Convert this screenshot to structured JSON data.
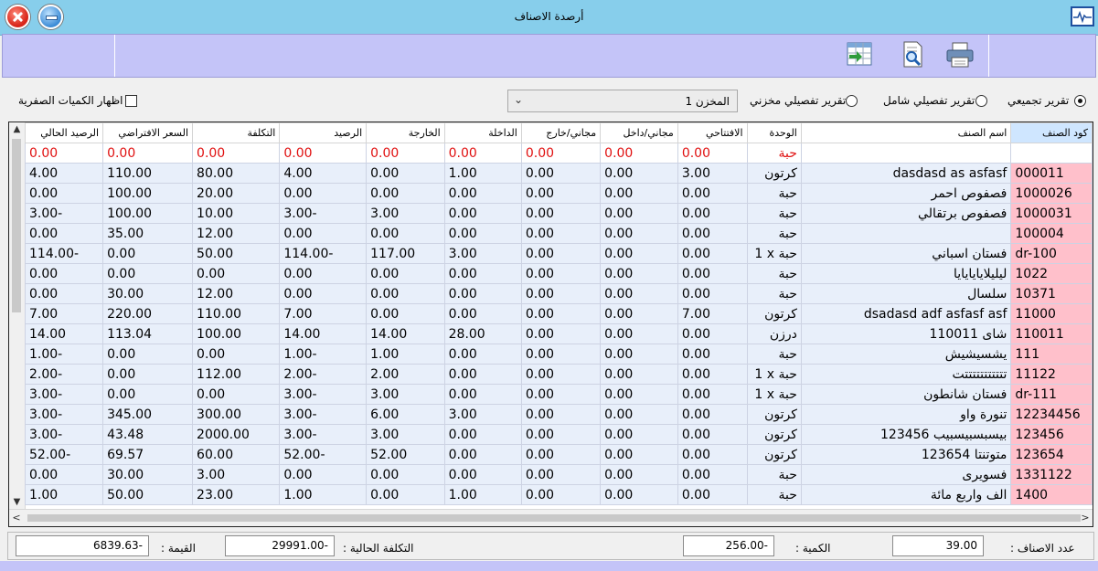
{
  "window": {
    "title": "أرصدة الاصناف"
  },
  "options": {
    "report_summary": "تقرير تجميعي",
    "report_detailed_full": "تقرير تفصيلي شامل",
    "report_detailed_store": "تقرير تفصيلي مخزني",
    "selected_report": "report_summary",
    "store_select": "المخزن 1",
    "show_zero": "اظهار الكميات الصفرية"
  },
  "grid": {
    "columns": [
      "كود الصنف",
      "اسم الصنف",
      "الوحدة",
      "الافتتاحي",
      "مجاني/داخل",
      "مجاني/خارج",
      "الداخلة",
      "الخارجة",
      "الرصيد",
      "التكلفة",
      "السعر الافتراضي",
      "الرصيد الحالي"
    ],
    "rows": [
      [
        "",
        "",
        "حبة",
        "0.00",
        "0.00",
        "0.00",
        "0.00",
        "0.00",
        "0.00",
        "0.00",
        "0.00",
        "0.00"
      ],
      [
        "000011",
        "dasdasd as asfasf",
        "كرتون",
        "3.00",
        "0.00",
        "0.00",
        "1.00",
        "0.00",
        "4.00",
        "80.00",
        "110.00",
        "4.00"
      ],
      [
        "1000026",
        "فصفوص احمر",
        "حبة",
        "0.00",
        "0.00",
        "0.00",
        "0.00",
        "0.00",
        "0.00",
        "20.00",
        "100.00",
        "0.00"
      ],
      [
        "1000031",
        "فصفوص برتقالي",
        "حبة",
        "0.00",
        "0.00",
        "0.00",
        "0.00",
        "3.00",
        "3.00-",
        "10.00",
        "100.00",
        "3.00-"
      ],
      [
        "100004",
        "",
        "حبة",
        "0.00",
        "0.00",
        "0.00",
        "0.00",
        "0.00",
        "0.00",
        "12.00",
        "35.00",
        "0.00"
      ],
      [
        "dr-100",
        "فستان اسباني",
        "1 x حبة",
        "0.00",
        "0.00",
        "0.00",
        "3.00",
        "117.00",
        "114.00-",
        "50.00",
        "0.00",
        "114.00-"
      ],
      [
        "1022",
        "ليليلايايايايا",
        "حبة",
        "0.00",
        "0.00",
        "0.00",
        "0.00",
        "0.00",
        "0.00",
        "0.00",
        "0.00",
        "0.00"
      ],
      [
        "10371",
        "سلسال",
        "حبة",
        "0.00",
        "0.00",
        "0.00",
        "0.00",
        "0.00",
        "0.00",
        "12.00",
        "30.00",
        "0.00"
      ],
      [
        "11000",
        "dsadasd adf asfasf asf",
        "كرتون",
        "7.00",
        "0.00",
        "0.00",
        "0.00",
        "0.00",
        "7.00",
        "110.00",
        "220.00",
        "7.00"
      ],
      [
        "110011",
        "110011 شاى",
        "درزن",
        "0.00",
        "0.00",
        "0.00",
        "28.00",
        "14.00",
        "14.00",
        "100.00",
        "113.04",
        "14.00"
      ],
      [
        "111",
        "يشسيشيش",
        "حبة",
        "0.00",
        "0.00",
        "0.00",
        "0.00",
        "1.00",
        "1.00-",
        "0.00",
        "0.00",
        "1.00-"
      ],
      [
        "11122",
        "تتتتتتتتتتتت",
        "1 x حبة",
        "0.00",
        "0.00",
        "0.00",
        "0.00",
        "2.00",
        "2.00-",
        "112.00",
        "0.00",
        "2.00-"
      ],
      [
        "dr-111",
        "فستان شانطون",
        "1 x حبة",
        "0.00",
        "0.00",
        "0.00",
        "0.00",
        "3.00",
        "3.00-",
        "0.00",
        "0.00",
        "3.00-"
      ],
      [
        "12234456",
        "تنورة واو",
        "كرتون",
        "0.00",
        "0.00",
        "0.00",
        "3.00",
        "6.00",
        "3.00-",
        "300.00",
        "345.00",
        "3.00-"
      ],
      [
        "123456",
        "123456 بيسبسبيسبيب",
        "كرتون",
        "0.00",
        "0.00",
        "0.00",
        "0.00",
        "3.00",
        "3.00-",
        "2000.00",
        "43.48",
        "3.00-"
      ],
      [
        "123654",
        "123654 متوتنتا",
        "كرتون",
        "0.00",
        "0.00",
        "0.00",
        "0.00",
        "52.00",
        "52.00-",
        "60.00",
        "69.57",
        "52.00-"
      ],
      [
        "1331122",
        "فسويرى",
        "حبة",
        "0.00",
        "0.00",
        "0.00",
        "0.00",
        "0.00",
        "0.00",
        "3.00",
        "30.00",
        "0.00"
      ],
      [
        "1400",
        "الف واربع مائة",
        "حبة",
        "0.00",
        "0.00",
        "0.00",
        "1.00",
        "0.00",
        "1.00",
        "23.00",
        "50.00",
        "1.00"
      ]
    ]
  },
  "footer": {
    "count_label": "عدد الاصناف :",
    "count_value": "39.00",
    "qty_label": "الكمية :",
    "qty_value": "256.00-",
    "cost_label": "التكلفة الحالية :",
    "cost_value": "29991.00-",
    "value_label": "القيمة :",
    "value_value": "6839.63-"
  }
}
